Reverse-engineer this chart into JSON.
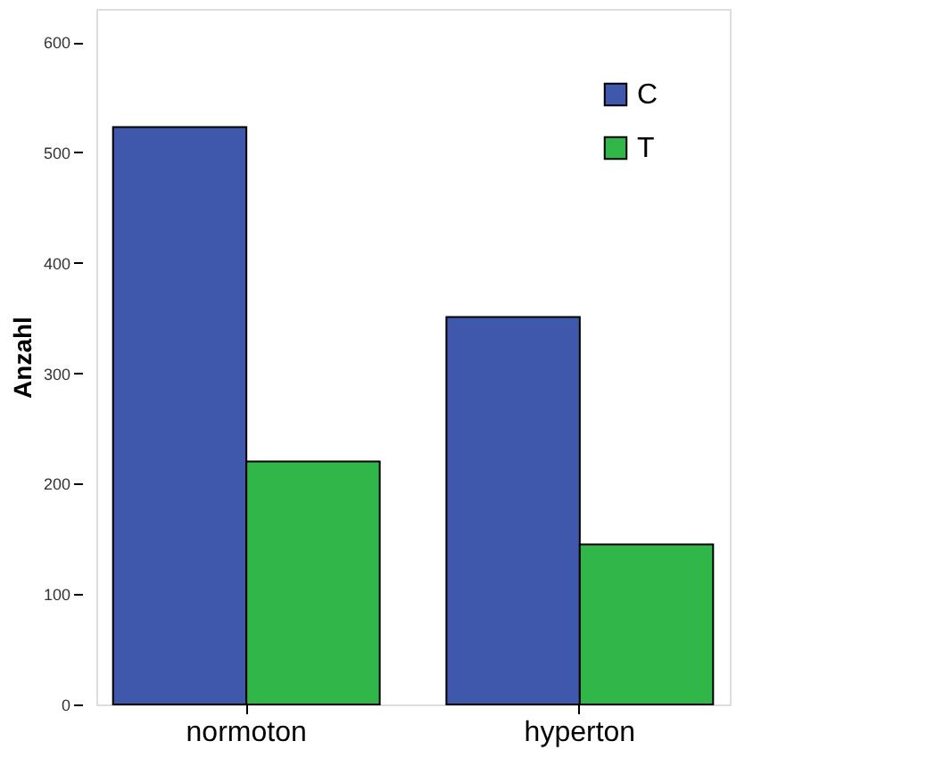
{
  "chart_data": {
    "type": "bar",
    "ylabel": "Anzahl",
    "categories": [
      "normoton",
      "hyperton"
    ],
    "series": [
      {
        "name": "C",
        "color": "#3f58ab",
        "values": [
          523,
          351
        ]
      },
      {
        "name": "T",
        "color": "#31b64a",
        "values": [
          220,
          145
        ]
      }
    ],
    "ylim": [
      0,
      630
    ],
    "yticks": [
      0,
      100,
      200,
      300,
      400,
      500,
      600
    ],
    "grid": false,
    "legend": "top right"
  }
}
